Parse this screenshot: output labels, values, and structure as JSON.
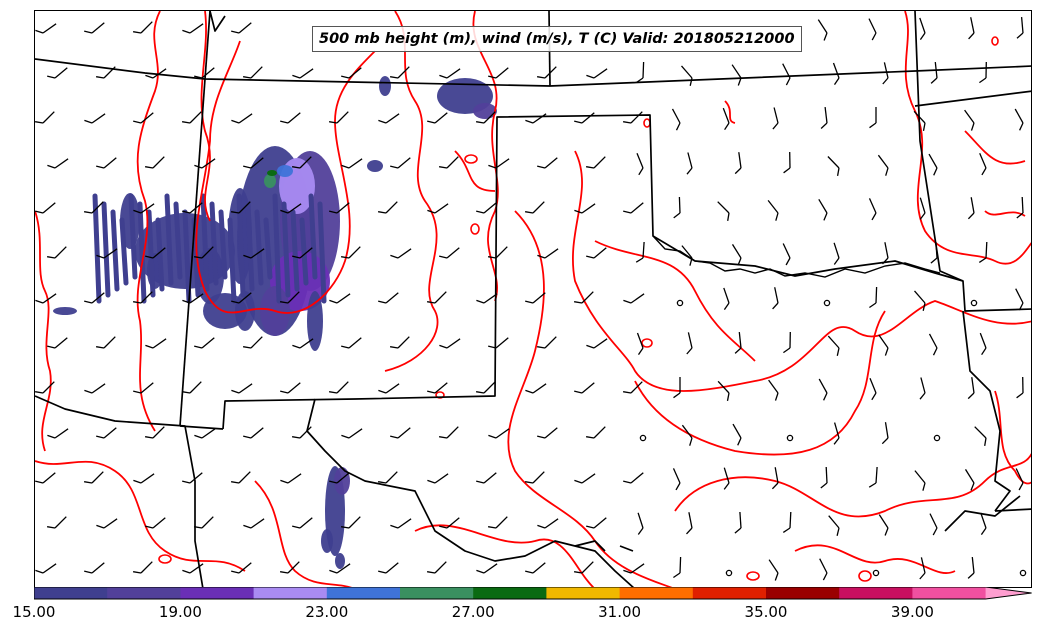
{
  "title": "500 mb height (m), wind (m/s), T (C) Valid: 201805212000",
  "colorbar": {
    "colors": [
      "#3f3f8f",
      "#52409a",
      "#6a2fb6",
      "#a98bf2",
      "#3f73d8",
      "#3a9060",
      "#0a6a12",
      "#f0b800",
      "#ff6e00",
      "#e02000",
      "#9a0000",
      "#c81060",
      "#f050a0",
      "#ff9ed0"
    ],
    "tick_labels": [
      "15.00",
      "19.00",
      "23.00",
      "27.00",
      "31.00",
      "35.00",
      "39.00"
    ],
    "min": 15,
    "max": 43,
    "step": 2
  },
  "colors": {
    "contour": "#ff0000",
    "border": "#000000",
    "barb": "#000000"
  },
  "wind_barbs_shown": true,
  "height_contours_shown": true,
  "state_borders_shown": true
}
